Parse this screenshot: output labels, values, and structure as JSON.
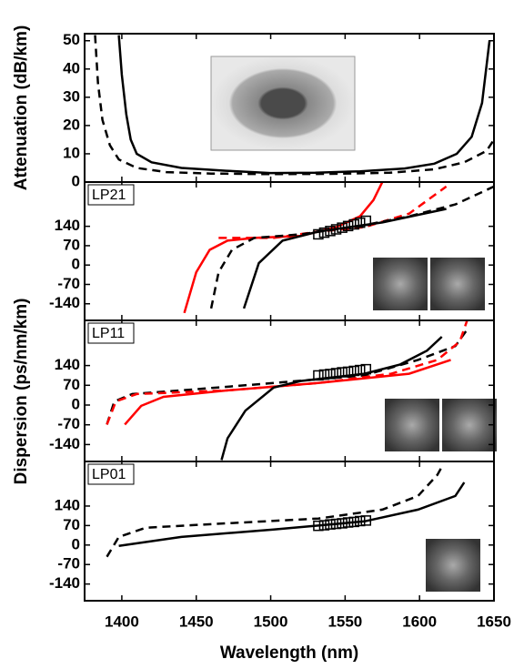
{
  "chart_data": [
    {
      "type": "line",
      "ylabel": "Attenuation (dB/km)",
      "xlim": [
        1375,
        1650
      ],
      "ylim": [
        0,
        52.5
      ],
      "yticks": [
        0,
        10,
        20,
        30,
        40,
        50
      ],
      "series": [
        {
          "color": "#000000",
          "dash": "solid",
          "x": [
            1398,
            1400,
            1403,
            1406,
            1410,
            1420,
            1440,
            1470,
            1500,
            1530,
            1560,
            1590,
            1610,
            1625,
            1635,
            1642,
            1647
          ],
          "values": [
            52,
            38,
            24,
            15,
            10,
            7,
            5,
            4,
            3.2,
            3.3,
            3.8,
            4.8,
            6.5,
            10,
            16,
            28,
            50
          ]
        },
        {
          "color": "#000000",
          "dash": "dashed",
          "x": [
            1382,
            1384,
            1387,
            1392,
            1398,
            1410,
            1430,
            1460,
            1500,
            1540,
            1580,
            1610,
            1630,
            1645,
            1650
          ],
          "values": [
            52,
            35,
            22,
            13,
            8,
            5,
            3.5,
            3,
            2.8,
            2.9,
            3.3,
            4.5,
            7,
            11,
            15
          ]
        }
      ]
    },
    {
      "type": "line",
      "label": "LP21",
      "xlim": [
        1375,
        1650
      ],
      "ylim": [
        -200,
        300
      ],
      "yticks": [
        -140,
        -70,
        0,
        70,
        140
      ],
      "series": [
        {
          "color": "#ff0000",
          "dash": "solid",
          "x": [
            1442,
            1450,
            1459,
            1471,
            1489,
            1520,
            1544,
            1560,
            1569,
            1575
          ],
          "values": [
            -173,
            -26,
            55,
            88,
            98,
            105,
            137,
            176,
            235,
            300
          ]
        },
        {
          "color": "#ff0000",
          "dash": "dashed",
          "x": [
            1465,
            1502,
            1532,
            1563,
            1593,
            1618
          ],
          "values": [
            98,
            98,
            121,
            137,
            186,
            284
          ]
        },
        {
          "color": "#000000",
          "dash": "dashed",
          "x": [
            1460,
            1465,
            1474,
            1489,
            1520,
            1563,
            1593,
            1624,
            1650
          ],
          "values": [
            -157,
            -26,
            55,
            98,
            111,
            144,
            176,
            219,
            284
          ]
        },
        {
          "color": "#000000",
          "dash": "solid",
          "x": [
            1482,
            1492,
            1508,
            1532,
            1575,
            1618
          ],
          "values": [
            -157,
            7,
            88,
            121,
            154,
            203
          ]
        },
        {
          "color": "#000000",
          "marker": "square",
          "x": [
            1532,
            1536,
            1540,
            1544,
            1548,
            1552,
            1556,
            1560,
            1564
          ],
          "values": [
            111,
            117,
            123,
            129,
            135,
            141,
            147,
            153,
            160
          ]
        }
      ]
    },
    {
      "type": "line",
      "label": "LP11",
      "ylabel": "Dispersion (ps/nm/km)",
      "xlim": [
        1375,
        1650
      ],
      "ylim": [
        -200,
        300
      ],
      "yticks": [
        -140,
        -70,
        0,
        70,
        140
      ],
      "series": [
        {
          "color": "#000000",
          "dash": "dashed",
          "x": [
            1390,
            1395,
            1407,
            1440,
            1502,
            1563,
            1599,
            1624,
            1633
          ],
          "values": [
            -69,
            13,
            39,
            52,
            78,
            105,
            160,
            209,
            275
          ]
        },
        {
          "color": "#ff0000",
          "dash": "dashed",
          "x": [
            1390,
            1396,
            1410,
            1471,
            1532,
            1581,
            1612,
            1627,
            1632
          ],
          "values": [
            -69,
            13,
            39,
            52,
            78,
            111,
            160,
            225,
            300
          ]
        },
        {
          "color": "#ff0000",
          "dash": "solid",
          "x": [
            1402,
            1413,
            1428,
            1471,
            1532,
            1593,
            1621
          ],
          "values": [
            -69,
            -3,
            29,
            52,
            78,
            111,
            160
          ]
        },
        {
          "color": "#000000",
          "dash": "solid",
          "x": [
            1467,
            1471,
            1483,
            1502,
            1520,
            1563,
            1587,
            1605,
            1615
          ],
          "values": [
            -195,
            -118,
            -20,
            62,
            85,
            111,
            144,
            193,
            242
          ]
        },
        {
          "color": "#000000",
          "marker": "square",
          "x": [
            1532,
            1536,
            1540,
            1544,
            1548,
            1552,
            1556,
            1560,
            1564
          ],
          "values": [
            105,
            108,
            110,
            113,
            116,
            118,
            121,
            124,
            127
          ]
        }
      ]
    },
    {
      "type": "line",
      "label": "LP01",
      "xlabel": "Wavelength (nm)",
      "xlim": [
        1375,
        1650
      ],
      "xticks": [
        1400,
        1450,
        1500,
        1550,
        1600,
        1650
      ],
      "ylim": [
        -200,
        300
      ],
      "yticks": [
        -140,
        -70,
        0,
        70,
        140
      ],
      "series": [
        {
          "color": "#000000",
          "dash": "dashed",
          "x": [
            1390,
            1398,
            1416,
            1471,
            1532,
            1575,
            1599,
            1612,
            1616
          ],
          "values": [
            -42,
            29,
            62,
            78,
            95,
            127,
            176,
            252,
            291
          ]
        },
        {
          "color": "#000000",
          "dash": "solid",
          "x": [
            1398,
            1440,
            1502,
            1563,
            1599,
            1624,
            1630
          ],
          "values": [
            -3,
            29,
            56,
            85,
            127,
            176,
            225
          ]
        },
        {
          "color": "#000000",
          "marker": "square",
          "x": [
            1532,
            1536,
            1540,
            1544,
            1548,
            1552,
            1556,
            1560,
            1564
          ],
          "values": [
            69,
            71,
            74,
            76,
            78,
            81,
            83,
            86,
            88
          ]
        }
      ]
    }
  ]
}
